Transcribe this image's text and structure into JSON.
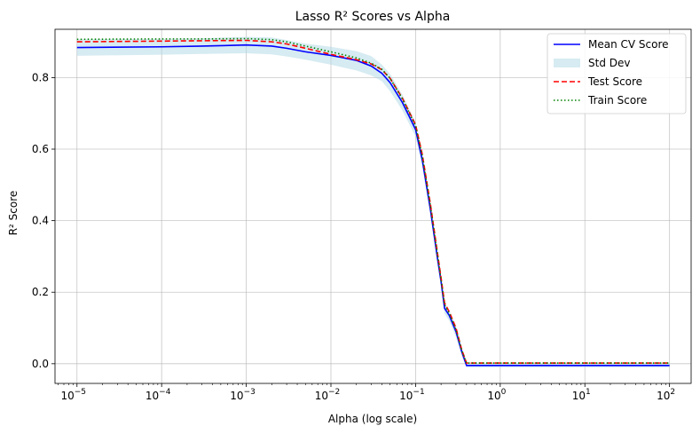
{
  "chart_data": {
    "type": "line",
    "title": "Lasso R² Scores vs Alpha",
    "xlabel": "Alpha (log scale)",
    "ylabel": "R² Score",
    "xscale": "log",
    "xlim": [
      5.5e-06,
      180
    ],
    "ylim": [
      -0.055,
      0.935
    ],
    "xticks": [
      {
        "value": 1e-05,
        "base": "10",
        "exp": "−5"
      },
      {
        "value": 0.0001,
        "base": "10",
        "exp": "−4"
      },
      {
        "value": 0.001,
        "base": "10",
        "exp": "−3"
      },
      {
        "value": 0.01,
        "base": "10",
        "exp": "−2"
      },
      {
        "value": 0.1,
        "base": "10",
        "exp": "−1"
      },
      {
        "value": 1,
        "base": "10",
        "exp": "0"
      },
      {
        "value": 10,
        "base": "10",
        "exp": "1"
      },
      {
        "value": 100,
        "base": "10",
        "exp": "2"
      }
    ],
    "yticks": [
      {
        "value": 0.0,
        "label": "0.0"
      },
      {
        "value": 0.2,
        "label": "0.2"
      },
      {
        "value": 0.4,
        "label": "0.4"
      },
      {
        "value": 0.6,
        "label": "0.6"
      },
      {
        "value": 0.8,
        "label": "0.8"
      }
    ],
    "grid": true,
    "legend_position": "top-right",
    "x": [
      1e-05,
      0.0001,
      0.0003,
      0.001,
      0.002,
      0.003,
      0.005,
      0.01,
      0.02,
      0.03,
      0.04,
      0.05,
      0.07,
      0.1,
      0.12,
      0.15,
      0.18,
      0.2,
      0.22,
      0.25,
      0.3,
      0.35,
      0.4,
      0.5,
      1,
      10,
      100
    ],
    "series": [
      {
        "name": "Mean CV Score",
        "color": "#0000ff",
        "style": "solid",
        "values": [
          0.884,
          0.886,
          0.888,
          0.891,
          0.888,
          0.882,
          0.872,
          0.862,
          0.848,
          0.832,
          0.812,
          0.786,
          0.73,
          0.655,
          0.57,
          0.43,
          0.3,
          0.23,
          0.155,
          0.135,
          0.09,
          0.035,
          -0.005,
          -0.005,
          -0.005,
          -0.005,
          -0.005
        ]
      },
      {
        "name": "Std Dev",
        "color": "#add8e6",
        "style": "band",
        "lower": [
          0.861,
          0.864,
          0.866,
          0.868,
          0.865,
          0.859,
          0.85,
          0.836,
          0.82,
          0.806,
          0.79,
          0.762,
          0.708,
          0.635,
          0.55,
          0.415,
          0.285,
          0.215,
          0.14,
          0.12,
          0.075,
          0.022,
          -0.01,
          -0.01,
          -0.01,
          -0.01,
          -0.01
        ],
        "upper": [
          0.907,
          0.908,
          0.91,
          0.914,
          0.912,
          0.905,
          0.895,
          0.886,
          0.874,
          0.86,
          0.836,
          0.81,
          0.752,
          0.675,
          0.59,
          0.445,
          0.315,
          0.245,
          0.17,
          0.15,
          0.105,
          0.048,
          0.0,
          0.0,
          0.0,
          0.0,
          0.0
        ]
      },
      {
        "name": "Test Score",
        "color": "#ff0000",
        "style": "dashed",
        "values": [
          0.9,
          0.902,
          0.903,
          0.904,
          0.9,
          0.894,
          0.882,
          0.865,
          0.85,
          0.838,
          0.822,
          0.798,
          0.742,
          0.668,
          0.585,
          0.445,
          0.315,
          0.24,
          0.17,
          0.145,
          0.1,
          0.04,
          0.002,
          0.002,
          0.002,
          0.002,
          0.002
        ]
      },
      {
        "name": "Train Score",
        "color": "#008000",
        "style": "dotted",
        "values": [
          0.907,
          0.908,
          0.908,
          0.909,
          0.906,
          0.9,
          0.888,
          0.872,
          0.855,
          0.84,
          0.823,
          0.798,
          0.74,
          0.665,
          0.58,
          0.44,
          0.31,
          0.235,
          0.165,
          0.14,
          0.095,
          0.038,
          0.002,
          0.002,
          0.002,
          0.002,
          0.002
        ]
      }
    ]
  }
}
